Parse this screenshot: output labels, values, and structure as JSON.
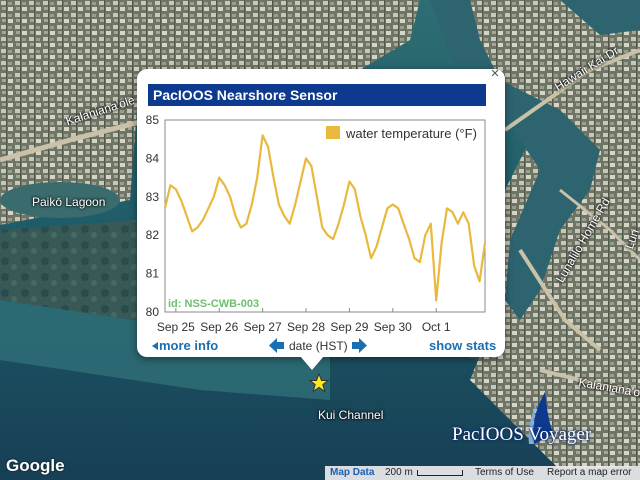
{
  "map": {
    "labels": {
      "kalanianaole_left": "Kalaniana'ole",
      "paiko_lagoon": "Paikō Lagoon",
      "hawaii_kai_dr": "Hawaii Kai Dr",
      "lunalilo_home_rd": "Lunalilo Home Rd",
      "kalanianaole_right": "Kalaniana'ole",
      "kui_channel": "Kui Channel",
      "lun_partial": "Lun"
    },
    "marker_icon": "star-icon",
    "marker_color": "#ffe81a"
  },
  "popup": {
    "title": "PacIOOS Nearshore Sensor",
    "close_glyph": "×",
    "more_info": "more info",
    "date_label": "date (HST)",
    "show_stats": "show stats",
    "sensor_id": "id: NSS-CWB-003",
    "title_bg": "#0d3a8f",
    "link_color": "#1a6fb3"
  },
  "chart_data": {
    "type": "line",
    "legend_position": "top-right",
    "series": [
      {
        "name": "water temperature (°F)",
        "color": "#e8b93c",
        "points": [
          [
            "09-24 18:00",
            82.7
          ],
          [
            "09-24 21:00",
            83.3
          ],
          [
            "09-25 00:00",
            83.2
          ],
          [
            "09-25 03:00",
            82.9
          ],
          [
            "09-25 06:00",
            82.5
          ],
          [
            "09-25 09:00",
            82.1
          ],
          [
            "09-25 12:00",
            82.2
          ],
          [
            "09-25 15:00",
            82.4
          ],
          [
            "09-25 18:00",
            82.7
          ],
          [
            "09-25 21:00",
            83.0
          ],
          [
            "09-26 00:00",
            83.5
          ],
          [
            "09-26 03:00",
            83.3
          ],
          [
            "09-26 06:00",
            83.0
          ],
          [
            "09-26 09:00",
            82.5
          ],
          [
            "09-26 12:00",
            82.2
          ],
          [
            "09-26 15:00",
            82.3
          ],
          [
            "09-26 18:00",
            82.8
          ],
          [
            "09-26 21:00",
            83.5
          ],
          [
            "09-27 00:00",
            84.6
          ],
          [
            "09-27 03:00",
            84.3
          ],
          [
            "09-27 06:00",
            83.5
          ],
          [
            "09-27 09:00",
            82.8
          ],
          [
            "09-27 12:00",
            82.5
          ],
          [
            "09-27 15:00",
            82.3
          ],
          [
            "09-27 18:00",
            82.8
          ],
          [
            "09-27 21:00",
            83.4
          ],
          [
            "09-28 00:00",
            84.0
          ],
          [
            "09-28 03:00",
            83.8
          ],
          [
            "09-28 06:00",
            83.0
          ],
          [
            "09-28 09:00",
            82.2
          ],
          [
            "09-28 12:00",
            82.0
          ],
          [
            "09-28 15:00",
            81.9
          ],
          [
            "09-28 18:00",
            82.3
          ],
          [
            "09-28 21:00",
            82.8
          ],
          [
            "09-29 00:00",
            83.4
          ],
          [
            "09-29 03:00",
            83.2
          ],
          [
            "09-29 06:00",
            82.5
          ],
          [
            "09-29 09:00",
            82.0
          ],
          [
            "09-29 12:00",
            81.4
          ],
          [
            "09-29 15:00",
            81.7
          ],
          [
            "09-29 18:00",
            82.2
          ],
          [
            "09-29 21:00",
            82.7
          ],
          [
            "09-30 00:00",
            82.8
          ],
          [
            "09-30 03:00",
            82.7
          ],
          [
            "09-30 06:00",
            82.3
          ],
          [
            "09-30 09:00",
            81.9
          ],
          [
            "09-30 12:00",
            81.4
          ],
          [
            "09-30 15:00",
            81.3
          ],
          [
            "09-30 18:00",
            82.0
          ],
          [
            "09-30 21:00",
            82.3
          ],
          [
            "10-01 00:00",
            80.3
          ],
          [
            "10-01 03:00",
            81.8
          ],
          [
            "10-01 06:00",
            82.7
          ],
          [
            "10-01 09:00",
            82.6
          ],
          [
            "10-01 12:00",
            82.3
          ],
          [
            "10-01 15:00",
            82.6
          ],
          [
            "10-01 18:00",
            82.3
          ],
          [
            "10-01 21:00",
            81.2
          ],
          [
            "10-02 00:00",
            80.8
          ],
          [
            "10-02 03:00",
            81.8
          ]
        ]
      }
    ],
    "x_ticks": [
      "Sep 25",
      "Sep 26",
      "Sep 27",
      "Sep 28",
      "Sep 29",
      "Sep 30",
      "Oct 1"
    ],
    "x_tick_dates": [
      "09-25 00:00",
      "09-26 00:00",
      "09-27 00:00",
      "09-28 00:00",
      "09-29 00:00",
      "09-30 00:00",
      "10-01 00:00"
    ],
    "xlim": [
      "09-24 18:00",
      "10-02 03:00"
    ],
    "y_ticks": [
      80,
      81,
      82,
      83,
      84,
      85
    ],
    "ylim": [
      80,
      85
    ],
    "grid": false
  },
  "footer": {
    "map_data": "Map Data",
    "scale": "200 m",
    "terms": "Terms of Use",
    "report": "Report a map error",
    "google": "Google"
  },
  "branding": {
    "text": "PacIOOS Voyager",
    "color": "#0d3a8f"
  }
}
